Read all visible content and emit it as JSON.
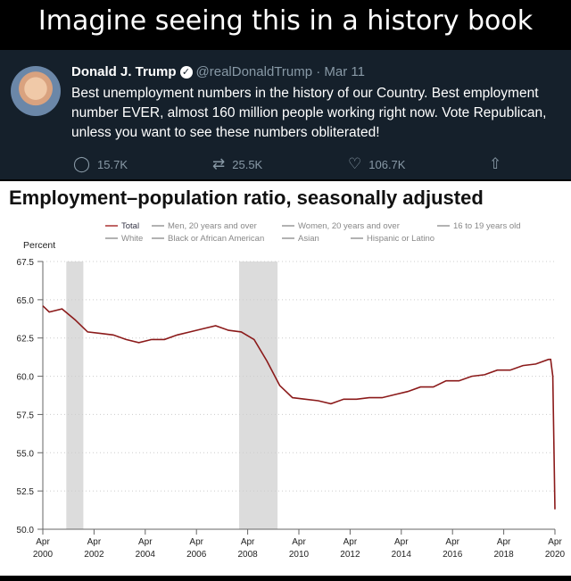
{
  "meme_title": "Imagine seeing this in a history book",
  "tweet": {
    "name": "Donald J. Trump",
    "handle": "@realDonaldTrump",
    "date": "· Mar 11",
    "text": "Best unemployment numbers in the history of our Country. Best employment number EVER, almost 160 million people working right now. Vote Republican, unless you want to see these numbers obliterated!",
    "replies": "15.7K",
    "retweets": "25.5K",
    "likes": "106.7K",
    "icons": [
      "reply-icon",
      "retweet-icon",
      "like-icon",
      "share-icon",
      "verified-icon"
    ]
  },
  "chart_data": {
    "type": "line",
    "title": "Employment–population ratio, seasonally adjusted",
    "ylabel": "Percent",
    "ylim": [
      50.0,
      67.5
    ],
    "yticks": [
      "67.5",
      "65.0",
      "62.5",
      "60.0",
      "57.5",
      "55.0",
      "52.5",
      "50.0"
    ],
    "xticks": [
      [
        "Apr",
        "2000"
      ],
      [
        "Apr",
        "2002"
      ],
      [
        "Apr",
        "2004"
      ],
      [
        "Apr",
        "2006"
      ],
      [
        "Apr",
        "2008"
      ],
      [
        "Apr",
        "2010"
      ],
      [
        "Apr",
        "2012"
      ],
      [
        "Apr",
        "2014"
      ],
      [
        "Apr",
        "2016"
      ],
      [
        "Apr",
        "2018"
      ],
      [
        "Apr",
        "2020"
      ]
    ],
    "xlim": [
      "2000-04",
      "2020-04"
    ],
    "grid": "horizontal dotted",
    "legend_placement": "top",
    "legend": [
      {
        "label": "Total",
        "active": true
      },
      {
        "label": "Men, 20 years and over",
        "active": false
      },
      {
        "label": "Women, 20 years and over",
        "active": false
      },
      {
        "label": "16 to 19 years old",
        "active": false
      },
      {
        "label": "White",
        "active": false
      },
      {
        "label": "Black or African American",
        "active": false
      },
      {
        "label": "Asian",
        "active": false
      },
      {
        "label": "Hispanic or Latino",
        "active": false
      }
    ],
    "recessions": [
      [
        "2001-03",
        "2001-11"
      ],
      [
        "2007-12",
        "2009-06"
      ]
    ],
    "series": [
      {
        "name": "Total",
        "color": "#8b1a1a",
        "x": [
          "2000-04",
          "2000-07",
          "2001-01",
          "2001-07",
          "2002-01",
          "2002-07",
          "2003-01",
          "2003-07",
          "2004-01",
          "2004-07",
          "2005-01",
          "2005-07",
          "2006-01",
          "2006-07",
          "2007-01",
          "2007-07",
          "2008-01",
          "2008-07",
          "2009-01",
          "2009-07",
          "2010-01",
          "2010-07",
          "2011-01",
          "2011-07",
          "2012-01",
          "2012-07",
          "2013-01",
          "2013-07",
          "2014-01",
          "2014-07",
          "2015-01",
          "2015-07",
          "2016-01",
          "2016-07",
          "2017-01",
          "2017-07",
          "2018-01",
          "2018-07",
          "2019-01",
          "2019-07",
          "2020-01",
          "2020-02",
          "2020-03",
          "2020-04"
        ],
        "values": [
          64.6,
          64.2,
          64.4,
          63.7,
          62.9,
          62.8,
          62.7,
          62.4,
          62.2,
          62.4,
          62.4,
          62.7,
          62.9,
          63.1,
          63.3,
          63.0,
          62.9,
          62.4,
          61.0,
          59.4,
          58.6,
          58.5,
          58.4,
          58.2,
          58.5,
          58.5,
          58.6,
          58.6,
          58.8,
          59.0,
          59.3,
          59.3,
          59.7,
          59.7,
          60.0,
          60.1,
          60.4,
          60.4,
          60.7,
          60.8,
          61.1,
          61.1,
          60.0,
          51.3
        ]
      }
    ]
  }
}
